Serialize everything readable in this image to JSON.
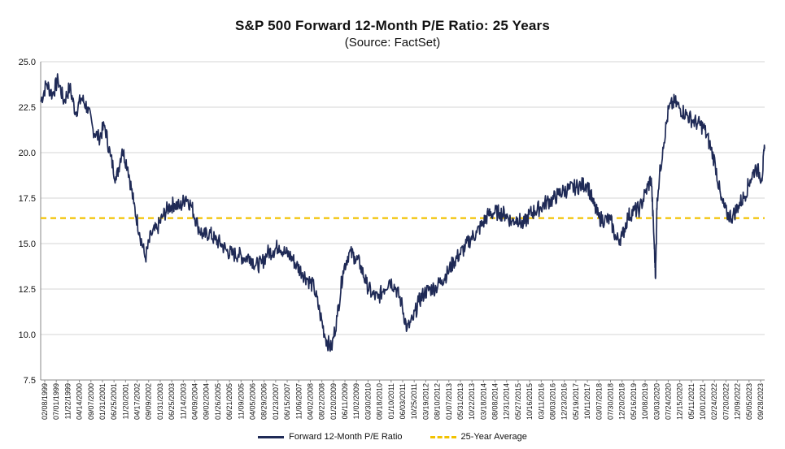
{
  "chart_data": {
    "type": "line",
    "title": "S&P 500 Forward 12-Month P/E Ratio: 25 Years",
    "subtitle": "(Source: FactSet)",
    "y_ticks": [
      "25.0",
      "22.5",
      "20.0",
      "17.5",
      "15.0",
      "12.5",
      "10.0",
      "7.5"
    ],
    "ylim": [
      7.5,
      25.0
    ],
    "x_ticks": [
      "02/08/1999",
      "07/01/1999",
      "11/22/1999",
      "04/14/2000",
      "09/07/2000",
      "01/31/2001",
      "06/25/2001",
      "11/20/2001",
      "04/17/2002",
      "09/09/2002",
      "01/31/2003",
      "06/25/2003",
      "11/14/2003",
      "04/09/2004",
      "09/02/2004",
      "01/26/2005",
      "06/21/2005",
      "11/09/2005",
      "04/05/2006",
      "08/29/2006",
      "01/23/2007",
      "06/15/2007",
      "11/06/2007",
      "04/02/2008",
      "08/22/2008",
      "01/20/2009",
      "06/11/2009",
      "11/02/2009",
      "03/30/2010",
      "08/18/2010",
      "01/10/2011",
      "06/03/2011",
      "10/25/2011",
      "03/19/2012",
      "08/10/2012",
      "01/07/2013",
      "05/31/2013",
      "10/22/2013",
      "03/18/2014",
      "08/08/2014",
      "12/31/2014",
      "05/27/2015",
      "10/16/2015",
      "03/11/2016",
      "08/03/2016",
      "12/23/2016",
      "05/19/2017",
      "10/11/2017",
      "03/07/2018",
      "07/30/2018",
      "12/20/2018",
      "05/16/2019",
      "10/08/2019",
      "03/03/2020",
      "07/24/2020",
      "12/15/2020",
      "05/11/2021",
      "10/01/2021",
      "02/24/2022",
      "07/20/2022",
      "12/09/2022",
      "05/05/2023",
      "09/28/2023"
    ],
    "series": [
      {
        "name": "Forward 12-Month P/E Ratio",
        "color": "#1f2a56",
        "x": [
          1999.1,
          1999.3,
          1999.5,
          1999.7,
          1999.9,
          2000.1,
          2000.3,
          2000.5,
          2000.7,
          2000.9,
          2001.1,
          2001.3,
          2001.5,
          2001.7,
          2001.9,
          2002.1,
          2002.3,
          2002.5,
          2002.7,
          2002.9,
          2003.1,
          2003.3,
          2003.5,
          2003.7,
          2003.9,
          2004.1,
          2004.3,
          2004.5,
          2004.7,
          2004.9,
          2005.1,
          2005.3,
          2005.5,
          2005.7,
          2005.9,
          2006.1,
          2006.3,
          2006.5,
          2006.7,
          2006.9,
          2007.1,
          2007.3,
          2007.5,
          2007.7,
          2007.9,
          2008.1,
          2008.3,
          2008.5,
          2008.7,
          2008.9,
          2009.1,
          2009.3,
          2009.5,
          2009.7,
          2009.9,
          2010.1,
          2010.3,
          2010.5,
          2010.7,
          2010.9,
          2011.1,
          2011.3,
          2011.5,
          2011.7,
          2011.9,
          2012.1,
          2012.3,
          2012.5,
          2012.7,
          2012.9,
          2013.1,
          2013.3,
          2013.5,
          2013.7,
          2013.9,
          2014.1,
          2014.3,
          2014.5,
          2014.7,
          2014.9,
          2015.1,
          2015.3,
          2015.5,
          2015.7,
          2015.9,
          2016.1,
          2016.3,
          2016.5,
          2016.7,
          2016.9,
          2017.1,
          2017.3,
          2017.5,
          2017.7,
          2017.9,
          2018.1,
          2018.3,
          2018.5,
          2018.7,
          2018.9,
          2019.1,
          2019.3,
          2019.5,
          2019.7,
          2019.9,
          2020.1,
          2020.2,
          2020.25,
          2020.3,
          2020.5,
          2020.7,
          2020.9,
          2021.1,
          2021.3,
          2021.5,
          2021.7,
          2021.9,
          2022.1,
          2022.3,
          2022.5,
          2022.7,
          2022.9,
          2023.1,
          2023.3,
          2023.5,
          2023.7,
          2023.9,
          2024.0
        ],
        "values": [
          22.8,
          23.8,
          23.2,
          24.0,
          22.8,
          23.6,
          22.2,
          23.0,
          22.5,
          21.3,
          20.8,
          21.5,
          19.8,
          18.5,
          20.2,
          19.2,
          17.2,
          15.6,
          14.2,
          15.5,
          15.8,
          16.5,
          17.0,
          17.2,
          17.0,
          17.6,
          17.0,
          16.0,
          15.4,
          15.6,
          15.2,
          15.0,
          14.6,
          14.4,
          14.4,
          14.2,
          14.3,
          13.8,
          13.9,
          14.5,
          14.6,
          14.9,
          14.5,
          14.3,
          13.8,
          13.4,
          13.0,
          12.6,
          11.2,
          9.8,
          9.2,
          11.0,
          13.5,
          14.5,
          14.3,
          13.8,
          12.8,
          12.2,
          12.0,
          12.5,
          13.0,
          12.6,
          11.8,
          10.3,
          10.8,
          11.8,
          12.3,
          12.5,
          12.6,
          13.0,
          13.4,
          14.0,
          14.4,
          14.8,
          15.3,
          15.6,
          16.1,
          16.6,
          16.7,
          16.7,
          16.6,
          16.2,
          16.4,
          16.0,
          16.6,
          16.8,
          17.0,
          17.3,
          17.4,
          17.7,
          17.9,
          18.0,
          18.1,
          18.2,
          18.3,
          17.2,
          16.4,
          16.3,
          16.3,
          15.2,
          15.4,
          16.5,
          16.8,
          16.9,
          17.8,
          18.6,
          15.0,
          13.2,
          17.5,
          20.3,
          22.4,
          22.8,
          22.4,
          22.1,
          21.8,
          21.6,
          21.4,
          20.5,
          19.4,
          17.4,
          16.6,
          16.5,
          17.1,
          17.6,
          18.5,
          19.2,
          18.6,
          20.2
        ]
      },
      {
        "name": "25-Year Average",
        "color": "#f2c200",
        "value": 16.4
      }
    ],
    "grid": "horizontal",
    "legend": "bottom-center"
  }
}
